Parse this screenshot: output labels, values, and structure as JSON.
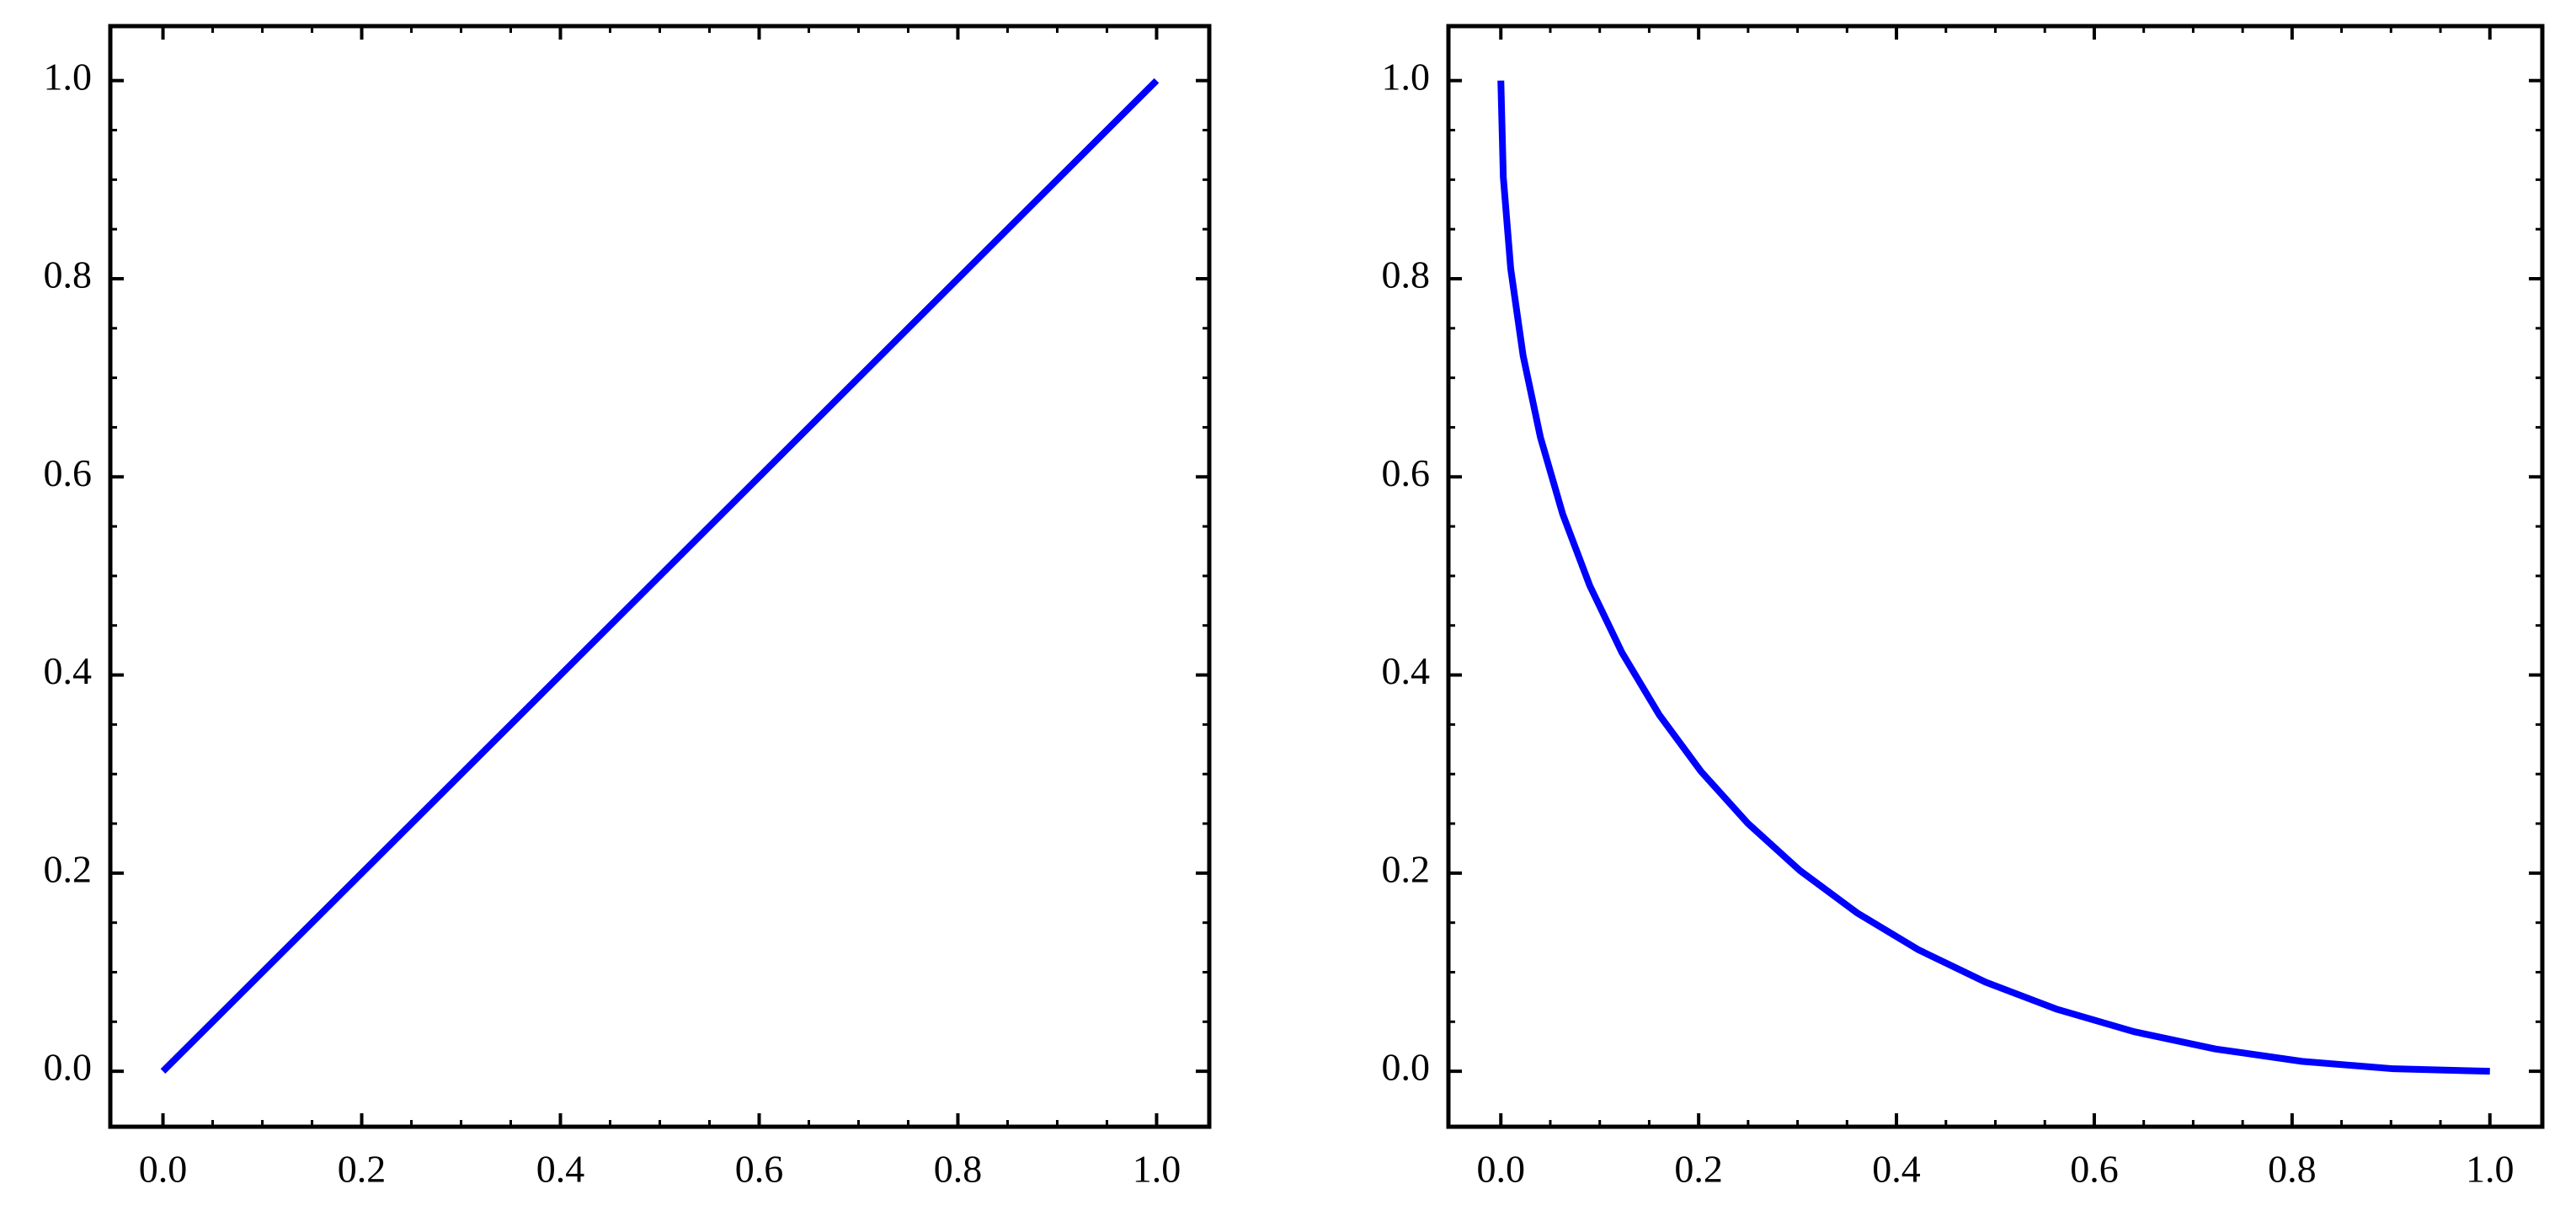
{
  "chart_data": [
    {
      "type": "line",
      "x": [
        0,
        1
      ],
      "values": [
        0,
        1
      ],
      "color": "#0000ff",
      "xlim": [
        -0.053,
        1.053
      ],
      "ylim": [
        -0.056,
        1.055
      ],
      "xticks": [
        {
          "value": 0,
          "label": "0.0"
        },
        0.2,
        0.4,
        0.6,
        0.8,
        {
          "value": 1,
          "label": "1.0"
        }
      ],
      "yticks": [
        {
          "value": 0,
          "label": "0.0"
        },
        0.2,
        0.4,
        0.6,
        0.8,
        {
          "value": 1,
          "label": "1.0"
        }
      ],
      "xminorticks": [
        0.05,
        0.1,
        0.15,
        0.25,
        0.3,
        0.35,
        0.45,
        0.5,
        0.55,
        0.65,
        0.7,
        0.75,
        0.85,
        0.9,
        0.95
      ],
      "yminorticks": [
        0.05,
        0.1,
        0.15,
        0.25,
        0.3,
        0.35,
        0.45,
        0.5,
        0.55,
        0.65,
        0.7,
        0.75,
        0.85,
        0.9,
        0.95
      ]
    },
    {
      "type": "line",
      "x": [
        0,
        0.0025,
        0.01,
        0.0225,
        0.04,
        0.0625,
        0.09,
        0.1225,
        0.16,
        0.2025,
        0.25,
        0.3025,
        0.36,
        0.4225,
        0.49,
        0.5625,
        0.64,
        0.7225,
        0.81,
        0.9025,
        1
      ],
      "values": [
        1,
        0.9025,
        0.81,
        0.7225,
        0.64,
        0.5625,
        0.49,
        0.4225,
        0.36,
        0.3025,
        0.25,
        0.2025,
        0.16,
        0.1225,
        0.09,
        0.0625,
        0.04,
        0.0225,
        0.01,
        0.0025,
        0
      ],
      "color": "#0000ff",
      "xlim": [
        -0.053,
        1.053
      ],
      "ylim": [
        -0.056,
        1.055
      ],
      "xticks": [
        {
          "value": 0,
          "label": "0.0"
        },
        0.2,
        0.4,
        0.6,
        0.8,
        {
          "value": 1,
          "label": "1.0"
        }
      ],
      "yticks": [
        {
          "value": 0,
          "label": "0.0"
        },
        0.2,
        0.4,
        0.6,
        0.8,
        {
          "value": 1,
          "label": "1.0"
        }
      ],
      "xminorticks": [
        0.05,
        0.1,
        0.15,
        0.25,
        0.3,
        0.35,
        0.45,
        0.5,
        0.55,
        0.65,
        0.7,
        0.75,
        0.85,
        0.9,
        0.95
      ],
      "yminorticks": [
        0.05,
        0.1,
        0.15,
        0.25,
        0.3,
        0.35,
        0.45,
        0.5,
        0.55,
        0.65,
        0.7,
        0.75,
        0.85,
        0.9,
        0.95
      ]
    }
  ]
}
